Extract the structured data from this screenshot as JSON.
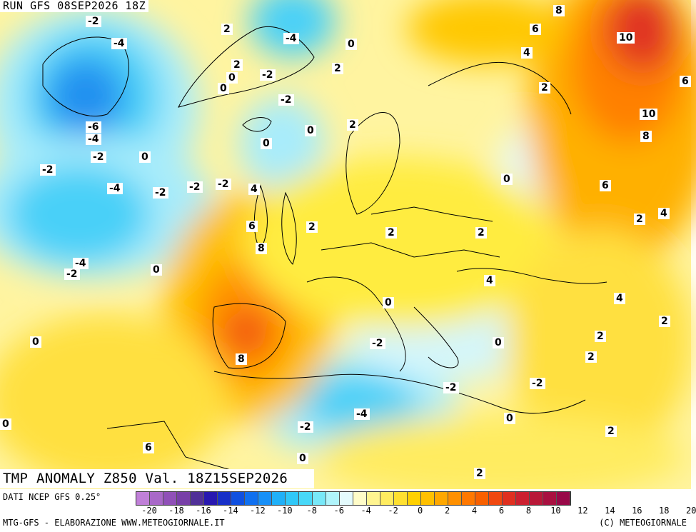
{
  "header": {
    "run_label": "RUN GFS 08SEP2026 18Z"
  },
  "title": {
    "field": "TMP ANOMALY Z850 Val. 18Z15SEP2026"
  },
  "footer": {
    "data_source": "DATI NCEP GFS 0.25°",
    "credits_left": "MTG-GFS - ELABORAZIONE WWW.METEOGIORNALE.IT",
    "credits_right": "(C) METEOGIORNALE"
  },
  "legend": {
    "colors": [
      "#c080d8",
      "#a868c8",
      "#9050b8",
      "#7840a8",
      "#503098",
      "#2818b0",
      "#1830c8",
      "#1050e0",
      "#1070f0",
      "#1890f8",
      "#20b0f8",
      "#30c8f8",
      "#48d8f8",
      "#78e8f8",
      "#b0f4fb",
      "#e4fbfd",
      "#fffcc8",
      "#fff490",
      "#ffec60",
      "#ffe030",
      "#ffd000",
      "#ffc000",
      "#ffa800",
      "#ff9000",
      "#ff7800",
      "#f86000",
      "#f04810",
      "#e03020",
      "#cc2030",
      "#b81838",
      "#a81040",
      "#980848"
    ],
    "labels": [
      "-20",
      "-18",
      "-16",
      "-14",
      "-12",
      "-10",
      "-8",
      "-6",
      "-4",
      "-2",
      "0",
      "2",
      "4",
      "6",
      "8",
      "10",
      "12",
      "14",
      "16",
      "18",
      "20"
    ]
  },
  "map_labels": [
    "-2",
    "-4",
    "2",
    "-4",
    "0",
    "-2",
    "2",
    "0",
    "0",
    "-6",
    "-4",
    "-2",
    "0",
    "-2",
    "-4",
    "-2",
    "-2",
    "-2",
    "4",
    "6",
    "8",
    "2",
    "0",
    "-4",
    "-2",
    "0",
    "0",
    "0",
    "-2",
    "2",
    "8",
    "6",
    "4",
    "2",
    "10",
    "6",
    "10",
    "8",
    "0",
    "6",
    "2",
    "4",
    "2",
    "2",
    "4",
    "0",
    "4",
    "2",
    "2",
    "2",
    "-2",
    "0",
    "-2",
    "-2",
    "-4",
    "0",
    "-2",
    "0",
    "8",
    "6",
    "2",
    "0",
    "2",
    "0",
    "2"
  ]
}
